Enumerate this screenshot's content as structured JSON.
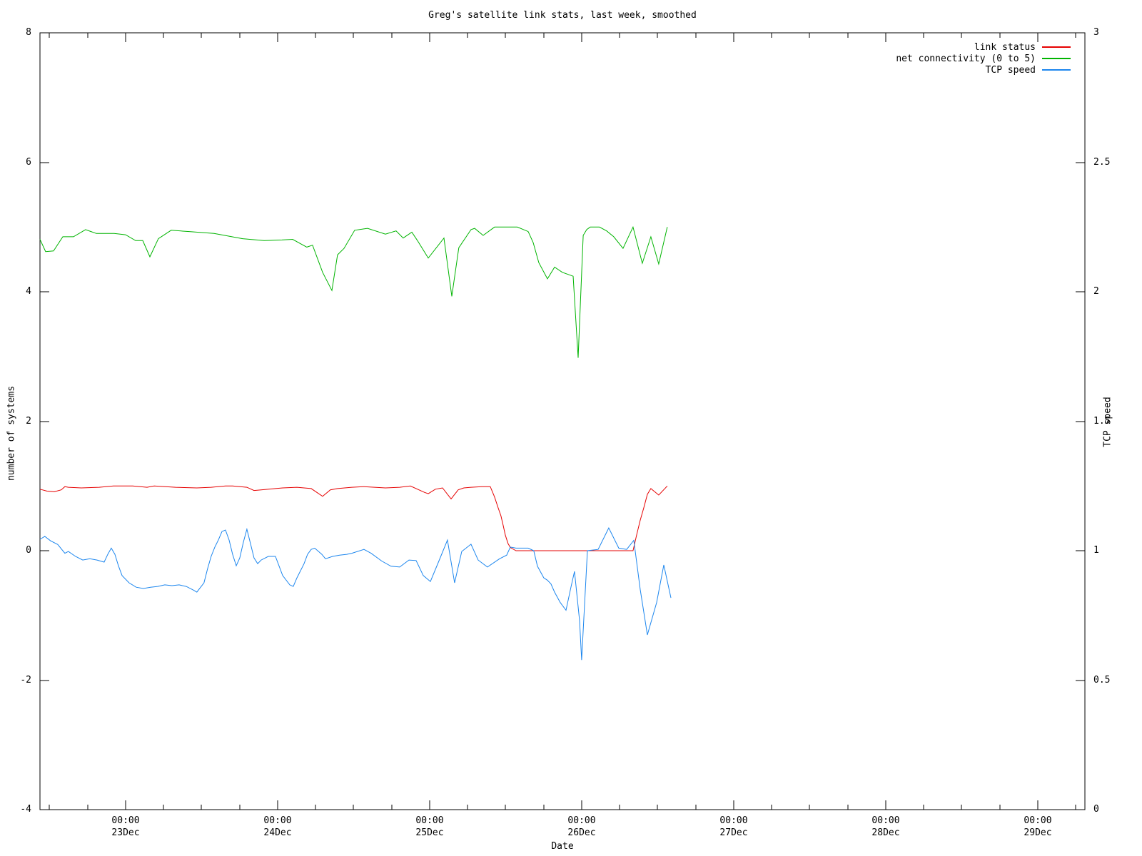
{
  "window": {
    "background": "#ffffff",
    "axis_color": "#000000"
  },
  "chart_data": {
    "type": "line",
    "title": "Greg's satellite link stats, last week, smoothed",
    "xlabel": "Date",
    "x_unit": "days relative to 23Dec 00:00",
    "xlim": [
      -0.563,
      6.31
    ],
    "grid": false,
    "legend_position": "top-right-inside",
    "x_major_ticks": [
      {
        "d": 0,
        "time": "00:00",
        "date": "23Dec"
      },
      {
        "d": 1,
        "time": "00:00",
        "date": "24Dec"
      },
      {
        "d": 2,
        "time": "00:00",
        "date": "25Dec"
      },
      {
        "d": 3,
        "time": "00:00",
        "date": "26Dec"
      },
      {
        "d": 4,
        "time": "00:00",
        "date": "27Dec"
      },
      {
        "d": 5,
        "time": "00:00",
        "date": "28Dec"
      },
      {
        "d": 6,
        "time": "00:00",
        "date": "29Dec"
      }
    ],
    "x_minor_tick_step": 0.25,
    "left_axis": {
      "label": "number of systems",
      "ylim": [
        -4,
        8
      ],
      "ticks": [
        -4,
        -2,
        0,
        2,
        4,
        6,
        8
      ]
    },
    "right_axis": {
      "label": "TCP speed",
      "ylim": [
        0,
        3
      ],
      "ticks": [
        0,
        0.5,
        1,
        1.5,
        2,
        2.5,
        3
      ]
    },
    "series": [
      {
        "name": "link status",
        "color": "#e60000",
        "axis": "left",
        "points": [
          [
            -0.563,
            0.95
          ],
          [
            -0.516,
            0.92
          ],
          [
            -0.469,
            0.91
          ],
          [
            -0.423,
            0.94
          ],
          [
            -0.399,
            0.99
          ],
          [
            -0.376,
            0.98
          ],
          [
            -0.291,
            0.97
          ],
          [
            -0.174,
            0.98
          ],
          [
            -0.08,
            1.0
          ],
          [
            0.047,
            1.0
          ],
          [
            0.141,
            0.98
          ],
          [
            0.188,
            1.0
          ],
          [
            0.329,
            0.98
          ],
          [
            0.469,
            0.97
          ],
          [
            0.563,
            0.98
          ],
          [
            0.657,
            1.0
          ],
          [
            0.704,
            1.0
          ],
          [
            0.798,
            0.98
          ],
          [
            0.845,
            0.93
          ],
          [
            0.892,
            0.94
          ],
          [
            0.986,
            0.96
          ],
          [
            1.033,
            0.97
          ],
          [
            1.127,
            0.98
          ],
          [
            1.174,
            0.97
          ],
          [
            1.221,
            0.96
          ],
          [
            1.296,
            0.84
          ],
          [
            1.347,
            0.94
          ],
          [
            1.394,
            0.96
          ],
          [
            1.441,
            0.97
          ],
          [
            1.488,
            0.98
          ],
          [
            1.568,
            0.99
          ],
          [
            1.638,
            0.98
          ],
          [
            1.709,
            0.97
          ],
          [
            1.803,
            0.98
          ],
          [
            1.873,
            1.0
          ],
          [
            1.967,
            0.9
          ],
          [
            1.991,
            0.88
          ],
          [
            2.038,
            0.95
          ],
          [
            2.085,
            0.97
          ],
          [
            2.141,
            0.8
          ],
          [
            2.188,
            0.94
          ],
          [
            2.225,
            0.97
          ],
          [
            2.272,
            0.98
          ],
          [
            2.343,
            0.99
          ],
          [
            2.399,
            0.99
          ],
          [
            2.427,
            0.83
          ],
          [
            2.451,
            0.66
          ],
          [
            2.469,
            0.54
          ],
          [
            2.484,
            0.39
          ],
          [
            2.498,
            0.24
          ],
          [
            2.516,
            0.11
          ],
          [
            2.531,
            0.05
          ],
          [
            2.568,
            0.0
          ],
          [
            2.8,
            0.0
          ],
          [
            3.0,
            0.0
          ],
          [
            3.2,
            0.0
          ],
          [
            3.338,
            0.0
          ],
          [
            3.362,
            0.25
          ],
          [
            3.385,
            0.47
          ],
          [
            3.408,
            0.66
          ],
          [
            3.432,
            0.87
          ],
          [
            3.455,
            0.96
          ],
          [
            3.507,
            0.86
          ],
          [
            3.563,
            1.0
          ]
        ]
      },
      {
        "name": "net connectivity (0 to 5)",
        "color": "#00b400",
        "axis": "left",
        "points": [
          [
            -0.563,
            4.81
          ],
          [
            -0.526,
            4.62
          ],
          [
            -0.474,
            4.63
          ],
          [
            -0.413,
            4.85
          ],
          [
            -0.343,
            4.85
          ],
          [
            -0.263,
            4.96
          ],
          [
            -0.192,
            4.9
          ],
          [
            -0.075,
            4.9
          ],
          [
            0.0,
            4.88
          ],
          [
            0.066,
            4.79
          ],
          [
            0.113,
            4.79
          ],
          [
            0.16,
            4.54
          ],
          [
            0.216,
            4.82
          ],
          [
            0.3,
            4.95
          ],
          [
            0.418,
            4.93
          ],
          [
            0.582,
            4.9
          ],
          [
            0.77,
            4.82
          ],
          [
            0.911,
            4.79
          ],
          [
            1.028,
            4.8
          ],
          [
            1.099,
            4.81
          ],
          [
            1.192,
            4.69
          ],
          [
            1.23,
            4.72
          ],
          [
            1.296,
            4.3
          ],
          [
            1.357,
            4.02
          ],
          [
            1.394,
            4.57
          ],
          [
            1.437,
            4.67
          ],
          [
            1.507,
            4.95
          ],
          [
            1.592,
            4.98
          ],
          [
            1.709,
            4.89
          ],
          [
            1.779,
            4.94
          ],
          [
            1.826,
            4.83
          ],
          [
            1.883,
            4.92
          ],
          [
            1.92,
            4.79
          ],
          [
            1.991,
            4.52
          ],
          [
            2.094,
            4.83
          ],
          [
            2.146,
            3.93
          ],
          [
            2.192,
            4.68
          ],
          [
            2.272,
            4.96
          ],
          [
            2.296,
            4.98
          ],
          [
            2.352,
            4.87
          ],
          [
            2.427,
            5.0
          ],
          [
            2.577,
            5.0
          ],
          [
            2.648,
            4.93
          ],
          [
            2.681,
            4.76
          ],
          [
            2.718,
            4.45
          ],
          [
            2.775,
            4.2
          ],
          [
            2.822,
            4.38
          ],
          [
            2.873,
            4.3
          ],
          [
            2.944,
            4.24
          ],
          [
            2.977,
            2.98
          ],
          [
            3.01,
            4.87
          ],
          [
            3.033,
            4.96
          ],
          [
            3.056,
            5.0
          ],
          [
            3.117,
            5.0
          ],
          [
            3.164,
            4.94
          ],
          [
            3.211,
            4.85
          ],
          [
            3.272,
            4.67
          ],
          [
            3.338,
            5.0
          ],
          [
            3.399,
            4.44
          ],
          [
            3.455,
            4.85
          ],
          [
            3.507,
            4.43
          ],
          [
            3.563,
            5.0
          ]
        ]
      },
      {
        "name": "TCP speed",
        "color": "#1c86ee",
        "axis": "right",
        "points": [
          [
            -0.563,
            1.044
          ],
          [
            -0.531,
            1.055
          ],
          [
            -0.493,
            1.038
          ],
          [
            -0.446,
            1.024
          ],
          [
            -0.399,
            0.99
          ],
          [
            -0.376,
            0.997
          ],
          [
            -0.329,
            0.978
          ],
          [
            -0.282,
            0.964
          ],
          [
            -0.235,
            0.969
          ],
          [
            -0.188,
            0.964
          ],
          [
            -0.141,
            0.956
          ],
          [
            -0.117,
            0.986
          ],
          [
            -0.094,
            1.01
          ],
          [
            -0.07,
            0.986
          ],
          [
            -0.047,
            0.942
          ],
          [
            -0.023,
            0.904
          ],
          [
            0.023,
            0.876
          ],
          [
            0.07,
            0.859
          ],
          [
            0.117,
            0.854
          ],
          [
            0.164,
            0.859
          ],
          [
            0.211,
            0.862
          ],
          [
            0.258,
            0.868
          ],
          [
            0.305,
            0.865
          ],
          [
            0.352,
            0.868
          ],
          [
            0.399,
            0.862
          ],
          [
            0.446,
            0.848
          ],
          [
            0.469,
            0.84
          ],
          [
            0.516,
            0.876
          ],
          [
            0.54,
            0.931
          ],
          [
            0.563,
            0.978
          ],
          [
            0.587,
            1.014
          ],
          [
            0.61,
            1.041
          ],
          [
            0.634,
            1.074
          ],
          [
            0.657,
            1.08
          ],
          [
            0.681,
            1.041
          ],
          [
            0.704,
            0.986
          ],
          [
            0.728,
            0.942
          ],
          [
            0.751,
            0.972
          ],
          [
            0.775,
            1.033
          ],
          [
            0.798,
            1.083
          ],
          [
            0.822,
            1.027
          ],
          [
            0.845,
            0.972
          ],
          [
            0.869,
            0.95
          ],
          [
            0.892,
            0.964
          ],
          [
            0.939,
            0.978
          ],
          [
            0.986,
            0.978
          ],
          [
            1.033,
            0.904
          ],
          [
            1.08,
            0.868
          ],
          [
            1.103,
            0.862
          ],
          [
            1.127,
            0.895
          ],
          [
            1.174,
            0.95
          ],
          [
            1.197,
            0.986
          ],
          [
            1.221,
            1.005
          ],
          [
            1.244,
            1.01
          ],
          [
            1.291,
            0.986
          ],
          [
            1.315,
            0.969
          ],
          [
            1.362,
            0.978
          ],
          [
            1.408,
            0.983
          ],
          [
            1.455,
            0.986
          ],
          [
            1.488,
            0.99
          ],
          [
            1.568,
            1.005
          ],
          [
            1.615,
            0.99
          ],
          [
            1.685,
            0.96
          ],
          [
            1.746,
            0.94
          ],
          [
            1.803,
            0.937
          ],
          [
            1.864,
            0.964
          ],
          [
            1.911,
            0.962
          ],
          [
            1.958,
            0.904
          ],
          [
            2.005,
            0.881
          ],
          [
            2.061,
            0.96
          ],
          [
            2.117,
            1.041
          ],
          [
            2.164,
            0.876
          ],
          [
            2.211,
            0.997
          ],
          [
            2.272,
            1.025
          ],
          [
            2.319,
            0.964
          ],
          [
            2.38,
            0.937
          ],
          [
            2.46,
            0.969
          ],
          [
            2.507,
            0.983
          ],
          [
            2.531,
            1.014
          ],
          [
            2.568,
            1.01
          ],
          [
            2.648,
            1.01
          ],
          [
            2.685,
            1.0
          ],
          [
            2.709,
            0.94
          ],
          [
            2.751,
            0.895
          ],
          [
            2.775,
            0.886
          ],
          [
            2.798,
            0.872
          ],
          [
            2.822,
            0.84
          ],
          [
            2.859,
            0.8
          ],
          [
            2.897,
            0.77
          ],
          [
            2.93,
            0.86
          ],
          [
            2.953,
            0.92
          ],
          [
            2.986,
            0.73
          ],
          [
            3.0,
            0.578
          ],
          [
            3.038,
            1.0
          ],
          [
            3.108,
            1.005
          ],
          [
            3.178,
            1.088
          ],
          [
            3.244,
            1.01
          ],
          [
            3.296,
            1.005
          ],
          [
            3.343,
            1.04
          ],
          [
            3.385,
            0.85
          ],
          [
            3.432,
            0.675
          ],
          [
            3.493,
            0.8
          ],
          [
            3.54,
            0.945
          ],
          [
            3.587,
            0.818
          ]
        ]
      }
    ]
  }
}
